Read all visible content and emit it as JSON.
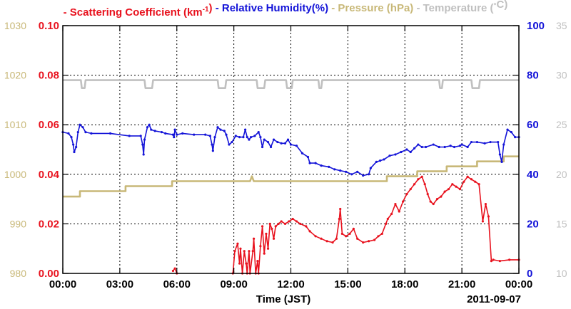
{
  "chart_data": {
    "type": "line",
    "legend": {
      "placement": "top",
      "items": [
        {
          "key": "scattering",
          "dash": "-",
          "text_main": "Scattering Coefficient (km",
          "sup": "-1",
          "text_close": ")",
          "color": "#e8121e"
        },
        {
          "key": "humidity",
          "dash": "-",
          "text_main": "Relative Humidity(%)",
          "color": "#1414d8"
        },
        {
          "key": "pressure",
          "dash": "-",
          "text_main": "Pressure (hPa)",
          "color": "#c8b878"
        },
        {
          "key": "temperature",
          "dash": "-",
          "text_main": "Temperature (",
          "degree": "°",
          "text_close": "C)",
          "color": "#c0c0c0"
        }
      ]
    },
    "xlabel": "Time (JST)",
    "date_label": "2011-09-07",
    "x_range_hours": [
      0,
      24
    ],
    "x_ticks": [
      {
        "hour": 0,
        "label": "00:00"
      },
      {
        "hour": 3,
        "label": "03:00"
      },
      {
        "hour": 6,
        "label": "06:00"
      },
      {
        "hour": 9,
        "label": "09:00"
      },
      {
        "hour": 12,
        "label": "12:00"
      },
      {
        "hour": 15,
        "label": "15:00"
      },
      {
        "hour": 18,
        "label": "18:00"
      },
      {
        "hour": 21,
        "label": "21:00"
      },
      {
        "hour": 24,
        "label": "00:00"
      }
    ],
    "grid": true,
    "axes": {
      "scattering": {
        "range": [
          0,
          0.1
        ],
        "ticks": [
          "0.00",
          "0.02",
          "0.04",
          "0.06",
          "0.08",
          "0.10"
        ],
        "color": "#e8121e",
        "side": "left-inner"
      },
      "pressure": {
        "range": [
          980,
          1030
        ],
        "ticks": [
          "980",
          "990",
          "1000",
          "1010",
          "1020",
          "1030"
        ],
        "color": "#c8b878",
        "side": "left-outer"
      },
      "humidity": {
        "range": [
          0,
          100
        ],
        "ticks": [
          "0",
          "20",
          "40",
          "60",
          "80",
          "100"
        ],
        "color": "#1414d8",
        "side": "right-inner"
      },
      "temperature": {
        "range": [
          10,
          35
        ],
        "ticks": [
          "10",
          "15",
          "20",
          "25",
          "30",
          "35"
        ],
        "color": "#c0c0c0",
        "side": "right-outer"
      }
    },
    "series": [
      {
        "key": "temperature",
        "axis": "temperature",
        "color": "#c0c0c0",
        "points": [
          [
            0,
            29.5
          ],
          [
            0.95,
            29.5
          ],
          [
            1.0,
            28.7
          ],
          [
            1.15,
            28.7
          ],
          [
            1.2,
            29.5
          ],
          [
            4.3,
            29.5
          ],
          [
            4.35,
            28.7
          ],
          [
            4.7,
            28.7
          ],
          [
            4.75,
            29.5
          ],
          [
            8.15,
            29.5
          ],
          [
            8.2,
            28.7
          ],
          [
            8.55,
            28.7
          ],
          [
            8.6,
            29.5
          ],
          [
            10.2,
            29.5
          ],
          [
            10.25,
            28.7
          ],
          [
            10.6,
            28.7
          ],
          [
            10.65,
            29.5
          ],
          [
            11.75,
            29.5
          ],
          [
            11.8,
            28.7
          ],
          [
            12.05,
            28.7
          ],
          [
            12.1,
            29.5
          ],
          [
            13.45,
            29.5
          ],
          [
            13.5,
            28.7
          ],
          [
            13.6,
            28.7
          ],
          [
            13.65,
            29.5
          ],
          [
            19.8,
            29.5
          ],
          [
            19.85,
            28.7
          ],
          [
            19.95,
            28.7
          ],
          [
            20.0,
            29.5
          ],
          [
            21.5,
            29.5
          ],
          [
            21.55,
            28.7
          ],
          [
            21.9,
            28.7
          ],
          [
            21.95,
            29.5
          ],
          [
            24,
            29.5
          ]
        ]
      },
      {
        "key": "pressure",
        "axis": "pressure",
        "color": "#c8b878",
        "points": [
          [
            0,
            995.5
          ],
          [
            0.9,
            995.5
          ],
          [
            0.9,
            996.6
          ],
          [
            3.3,
            996.6
          ],
          [
            3.3,
            997.6
          ],
          [
            5.75,
            997.6
          ],
          [
            5.75,
            998.6
          ],
          [
            9.85,
            998.6
          ],
          [
            9.95,
            999.6
          ],
          [
            10.05,
            998.6
          ],
          [
            17.05,
            998.6
          ],
          [
            17.05,
            999.6
          ],
          [
            18.65,
            999.6
          ],
          [
            18.65,
            1000.6
          ],
          [
            20.2,
            1000.6
          ],
          [
            20.2,
            1001.6
          ],
          [
            21.8,
            1001.6
          ],
          [
            21.8,
            1002.6
          ],
          [
            23.2,
            1002.6
          ],
          [
            23.2,
            1003.6
          ],
          [
            24,
            1003.6
          ]
        ]
      },
      {
        "key": "humidity",
        "axis": "humidity",
        "color": "#1414d8",
        "points": [
          [
            0,
            57
          ],
          [
            0.3,
            56.5
          ],
          [
            0.45,
            55
          ],
          [
            0.55,
            52
          ],
          [
            0.6,
            49
          ],
          [
            0.7,
            51
          ],
          [
            0.8,
            57
          ],
          [
            0.9,
            60
          ],
          [
            1.05,
            59
          ],
          [
            1.2,
            57
          ],
          [
            1.5,
            56.5
          ],
          [
            2.5,
            56.5
          ],
          [
            3.5,
            55.5
          ],
          [
            4.1,
            55.5
          ],
          [
            4.2,
            52
          ],
          [
            4.25,
            48
          ],
          [
            4.3,
            54
          ],
          [
            4.45,
            59
          ],
          [
            4.55,
            60
          ],
          [
            4.65,
            58
          ],
          [
            4.85,
            57.5
          ],
          [
            5.2,
            57
          ],
          [
            5.4,
            56.5
          ],
          [
            5.8,
            56
          ],
          [
            5.85,
            55
          ],
          [
            5.9,
            58
          ],
          [
            6.0,
            56
          ],
          [
            6.3,
            56.5
          ],
          [
            6.9,
            56
          ],
          [
            7.5,
            56
          ],
          [
            7.75,
            55.5
          ],
          [
            7.85,
            52
          ],
          [
            7.9,
            49.5
          ],
          [
            8.0,
            55
          ],
          [
            8.15,
            59
          ],
          [
            8.3,
            58
          ],
          [
            8.5,
            57.5
          ],
          [
            8.6,
            56
          ],
          [
            8.75,
            52
          ],
          [
            8.9,
            53
          ],
          [
            9.1,
            55.5
          ],
          [
            9.3,
            55
          ],
          [
            9.5,
            55
          ],
          [
            9.6,
            58
          ],
          [
            9.7,
            55
          ],
          [
            9.8,
            54
          ],
          [
            9.9,
            55
          ],
          [
            10.1,
            55.5
          ],
          [
            10.3,
            57
          ],
          [
            10.4,
            55
          ],
          [
            10.5,
            51
          ],
          [
            10.6,
            54
          ],
          [
            10.8,
            53
          ],
          [
            10.95,
            51
          ],
          [
            11.1,
            54
          ],
          [
            11.3,
            53
          ],
          [
            11.5,
            52.5
          ],
          [
            11.7,
            52.5
          ],
          [
            11.85,
            54
          ],
          [
            12.0,
            52
          ],
          [
            12.3,
            51.5
          ],
          [
            12.6,
            48.5
          ],
          [
            12.9,
            47
          ],
          [
            13.0,
            44.5
          ],
          [
            13.3,
            44.5
          ],
          [
            13.6,
            43.5
          ],
          [
            14.0,
            43
          ],
          [
            14.3,
            42
          ],
          [
            14.6,
            41.5
          ],
          [
            14.9,
            41
          ],
          [
            15.2,
            40
          ],
          [
            15.5,
            41
          ],
          [
            15.8,
            39.5
          ],
          [
            16.1,
            40
          ],
          [
            16.2,
            42.5
          ],
          [
            16.5,
            45
          ],
          [
            16.7,
            45.5
          ],
          [
            16.9,
            46
          ],
          [
            17.2,
            47.5
          ],
          [
            17.5,
            48
          ],
          [
            17.8,
            49
          ],
          [
            18.1,
            50
          ],
          [
            18.3,
            49
          ],
          [
            18.5,
            50.5
          ],
          [
            18.7,
            52
          ],
          [
            18.9,
            51
          ],
          [
            19.1,
            51
          ],
          [
            19.5,
            52
          ],
          [
            19.8,
            51
          ],
          [
            20.1,
            51
          ],
          [
            20.4,
            51.5
          ],
          [
            20.6,
            51
          ],
          [
            20.9,
            51.5
          ],
          [
            21.0,
            52
          ],
          [
            21.3,
            51
          ],
          [
            21.5,
            53
          ],
          [
            21.8,
            53
          ],
          [
            22.2,
            52.5
          ],
          [
            22.5,
            53
          ],
          [
            22.9,
            53
          ],
          [
            23.0,
            48
          ],
          [
            23.1,
            45
          ],
          [
            23.2,
            52
          ],
          [
            23.4,
            58
          ],
          [
            23.6,
            57
          ],
          [
            23.8,
            55
          ],
          [
            24,
            55
          ]
        ]
      },
      {
        "key": "scattering",
        "axis": "scattering",
        "color": "#e8121e",
        "segments": [
          [
            [
              5.8,
              0.001
            ],
            [
              5.9,
              0.002
            ],
            [
              6.0,
              0.0
            ]
          ],
          [
            [
              8.95,
              0.0
            ],
            [
              9.05,
              0.009
            ],
            [
              9.2,
              0.012
            ],
            [
              9.3,
              0.004
            ],
            [
              9.35,
              0.01
            ],
            [
              9.45,
              0.0
            ],
            [
              9.55,
              0.009
            ],
            [
              9.65,
              0.004
            ],
            [
              9.7,
              0.0
            ],
            [
              9.8,
              0.009
            ],
            [
              9.85,
              0.0
            ],
            [
              10.0,
              0.009
            ],
            [
              10.05,
              0.014
            ],
            [
              10.15,
              0.0
            ],
            [
              10.25,
              0.005
            ],
            [
              10.3,
              0.0
            ],
            [
              10.4,
              0.011
            ],
            [
              10.5,
              0.019
            ],
            [
              10.6,
              0.008
            ],
            [
              10.7,
              0.016
            ],
            [
              10.8,
              0.01
            ],
            [
              10.9,
              0.02
            ],
            [
              11.0,
              0.018
            ],
            [
              11.1,
              0.014
            ],
            [
              11.2,
              0.019
            ],
            [
              11.35,
              0.02
            ],
            [
              11.5,
              0.021
            ],
            [
              11.7,
              0.02
            ],
            [
              11.9,
              0.021
            ],
            [
              12.1,
              0.022
            ],
            [
              12.3,
              0.021
            ],
            [
              12.5,
              0.02
            ],
            [
              12.8,
              0.019
            ],
            [
              13.0,
              0.017
            ],
            [
              13.3,
              0.015
            ],
            [
              13.6,
              0.014
            ],
            [
              13.9,
              0.013
            ],
            [
              14.2,
              0.0125
            ],
            [
              14.4,
              0.014
            ],
            [
              14.55,
              0.022
            ],
            [
              14.6,
              0.026
            ],
            [
              14.7,
              0.016
            ],
            [
              14.9,
              0.015
            ],
            [
              15.1,
              0.016
            ],
            [
              15.3,
              0.018
            ],
            [
              15.5,
              0.014
            ],
            [
              15.8,
              0.0125
            ],
            [
              16.1,
              0.013
            ],
            [
              16.4,
              0.0135
            ],
            [
              16.6,
              0.015
            ],
            [
              16.8,
              0.016
            ],
            [
              17.0,
              0.02
            ],
            [
              17.1,
              0.022
            ],
            [
              17.3,
              0.024
            ],
            [
              17.5,
              0.028
            ],
            [
              17.7,
              0.025
            ],
            [
              17.9,
              0.029
            ],
            [
              18.1,
              0.032
            ],
            [
              18.3,
              0.034
            ],
            [
              18.5,
              0.036
            ],
            [
              18.7,
              0.038
            ],
            [
              18.9,
              0.039
            ],
            [
              19.05,
              0.036
            ],
            [
              19.2,
              0.032
            ],
            [
              19.35,
              0.029
            ],
            [
              19.5,
              0.028
            ],
            [
              19.7,
              0.03
            ],
            [
              19.9,
              0.031
            ],
            [
              20.1,
              0.033
            ],
            [
              20.3,
              0.034
            ],
            [
              20.5,
              0.036
            ],
            [
              20.7,
              0.035
            ],
            [
              20.9,
              0.034
            ],
            [
              21.1,
              0.037
            ],
            [
              21.3,
              0.039
            ],
            [
              21.5,
              0.038
            ],
            [
              21.7,
              0.037
            ],
            [
              21.9,
              0.036
            ],
            [
              22.1,
              0.021
            ],
            [
              22.25,
              0.028
            ],
            [
              22.4,
              0.023
            ],
            [
              22.55,
              0.005
            ],
            [
              22.65,
              0.0055
            ],
            [
              23.0,
              0.005
            ],
            [
              23.5,
              0.0055
            ],
            [
              24,
              0.0055
            ]
          ]
        ]
      }
    ]
  }
}
